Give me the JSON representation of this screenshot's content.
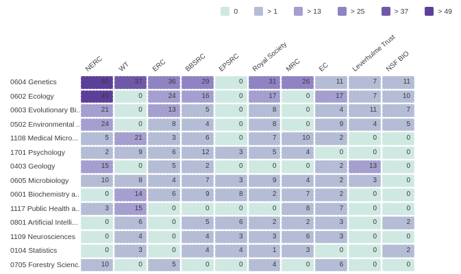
{
  "legend": {
    "items": [
      {
        "label": "0",
        "color": "#cfe8e2",
        "min": 0
      },
      {
        "label": "> 1",
        "color": "#b4bdd5",
        "min": 1
      },
      {
        "label": "> 13",
        "color": "#a59fd0",
        "min": 13
      },
      {
        "label": "> 25",
        "color": "#9083c3",
        "min": 25
      },
      {
        "label": "> 37",
        "color": "#7058a9",
        "min": 37
      },
      {
        "label": "> 49",
        "color": "#5d3f99",
        "min": 49
      }
    ]
  },
  "chart_data": {
    "type": "heatmap",
    "title": "",
    "columns": [
      "NERC",
      "WT",
      "ERC",
      "BBSRC",
      "EPSRC",
      "Royal Society",
      "MRC",
      "EC",
      "Leverhulme Trust",
      "NSF BIO"
    ],
    "rows": [
      {
        "label": "0604 Genetics",
        "values": [
          60,
          37,
          36,
          29,
          0,
          31,
          26,
          11,
          7,
          11
        ]
      },
      {
        "label": "0602 Ecology",
        "values": [
          49,
          0,
          24,
          16,
          0,
          17,
          0,
          17,
          7,
          10
        ]
      },
      {
        "label": "0603 Evolutionary Bi...",
        "values": [
          21,
          0,
          13,
          5,
          0,
          8,
          0,
          4,
          11,
          7
        ]
      },
      {
        "label": "0502 Environmental ...",
        "values": [
          24,
          0,
          8,
          4,
          0,
          8,
          0,
          9,
          4,
          5
        ]
      },
      {
        "label": "1108 Medical Micro...",
        "values": [
          5,
          21,
          3,
          6,
          0,
          7,
          10,
          2,
          0,
          0
        ]
      },
      {
        "label": "1701 Psychology",
        "values": [
          2,
          9,
          6,
          12,
          3,
          5,
          4,
          0,
          0,
          0
        ]
      },
      {
        "label": "0403 Geology",
        "values": [
          15,
          0,
          5,
          2,
          0,
          0,
          0,
          2,
          13,
          0
        ]
      },
      {
        "label": "0605 Microbiology",
        "values": [
          10,
          8,
          4,
          7,
          3,
          9,
          4,
          2,
          3,
          0
        ]
      },
      {
        "label": "0601 Biochemistry a...",
        "values": [
          0,
          14,
          6,
          9,
          8,
          2,
          7,
          2,
          0,
          0
        ]
      },
      {
        "label": "1117 Public Health a...",
        "values": [
          3,
          15,
          0,
          0,
          0,
          0,
          8,
          7,
          0,
          0
        ]
      },
      {
        "label": "0801 Artificial Intelli...",
        "values": [
          0,
          6,
          0,
          5,
          6,
          2,
          2,
          3,
          0,
          2
        ]
      },
      {
        "label": "1109 Neurosciences",
        "values": [
          0,
          4,
          0,
          4,
          3,
          3,
          6,
          3,
          0,
          0
        ]
      },
      {
        "label": "0104 Statistics",
        "values": [
          0,
          3,
          0,
          4,
          4,
          1,
          3,
          0,
          0,
          2
        ]
      },
      {
        "label": "0705 Forestry Scienc...",
        "values": [
          10,
          0,
          5,
          0,
          0,
          4,
          0,
          6,
          0,
          0
        ]
      }
    ],
    "legend_position": "top-right",
    "value_buckets": [
      "0",
      "> 1",
      "> 13",
      "> 25",
      "> 37",
      "> 49"
    ]
  }
}
